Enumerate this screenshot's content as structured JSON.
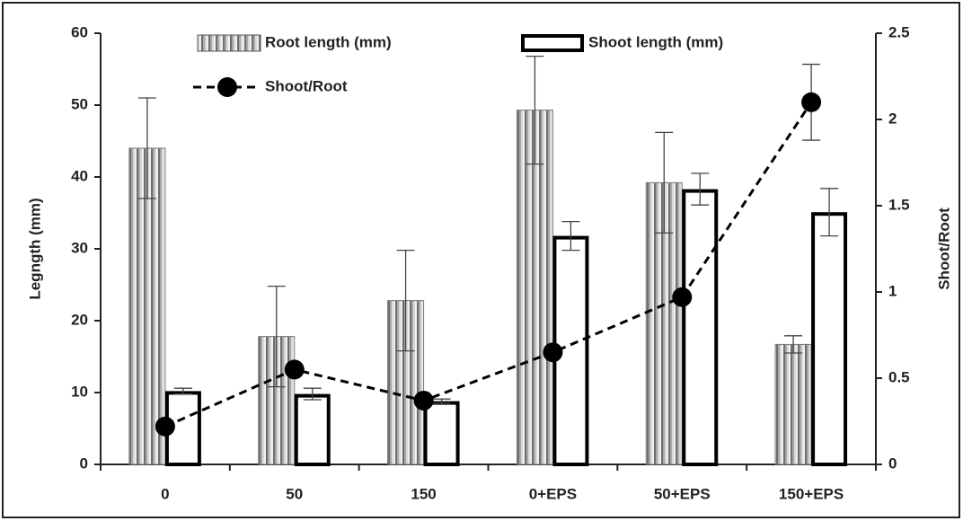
{
  "chart_data": {
    "type": "bar-line",
    "categories": [
      "0",
      "50",
      "150",
      "0+EPS",
      "50+EPS",
      "150+EPS"
    ],
    "ylabel": "Legngth (mm)",
    "y2label": "Shoot/Root",
    "ylim": [
      0,
      60
    ],
    "yticks": [
      0,
      10,
      20,
      30,
      40,
      50,
      60
    ],
    "y2lim": [
      0,
      2.5
    ],
    "y2ticks": [
      0,
      0.5,
      1,
      1.5,
      2,
      2.5
    ],
    "series": [
      {
        "name": "Root length (mm)",
        "type": "bar",
        "color": "#9a9a9a",
        "values": [
          44,
          17.8,
          22.8,
          49.3,
          39.2,
          16.7
        ],
        "errors": [
          7,
          7,
          7,
          7.5,
          7,
          1.2
        ]
      },
      {
        "name": "Shoot length (mm)",
        "type": "bar",
        "color": "#000000",
        "values": [
          10.2,
          9.8,
          8.8,
          31.8,
          38.3,
          35.1
        ],
        "errors": [
          0.4,
          0.8,
          0.3,
          2,
          2.2,
          3.3
        ]
      },
      {
        "name": "Shoot/Root",
        "type": "line",
        "axis": "y2",
        "color": "#000000",
        "values": [
          0.22,
          0.55,
          0.37,
          0.65,
          0.97,
          2.1
        ],
        "errors": [
          null,
          null,
          null,
          null,
          null,
          0.22
        ]
      }
    ]
  }
}
